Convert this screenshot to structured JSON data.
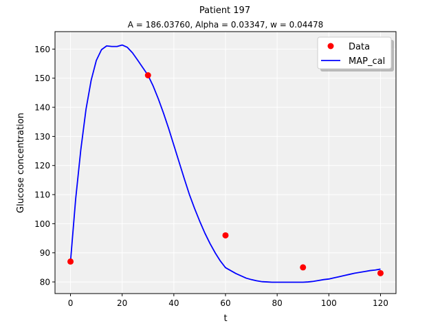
{
  "chart_data": {
    "type": "line",
    "suptitle": "Patient 197",
    "title": "A = 186.03760, Alpha = 0.03347, w = 0.04478",
    "xlabel": "t",
    "ylabel": "Glucose concentration",
    "xlim": [
      -6,
      126
    ],
    "ylim": [
      76,
      166
    ],
    "xticks": [
      0,
      20,
      40,
      60,
      80,
      100,
      120
    ],
    "yticks": [
      80,
      90,
      100,
      110,
      120,
      130,
      140,
      150,
      160
    ],
    "grid": true,
    "legend": "top-right",
    "series": [
      {
        "name": "Data",
        "kind": "scatter",
        "color": "#ff0000",
        "x": [
          0,
          30,
          60,
          90,
          120
        ],
        "y": [
          87,
          151,
          96,
          85,
          83
        ]
      },
      {
        "name": "MAP_cal",
        "kind": "line",
        "color": "#0000ff",
        "x": [
          0,
          2,
          4,
          6,
          8,
          10,
          12,
          14,
          16,
          18,
          20,
          22,
          24,
          26,
          28,
          30,
          32,
          34,
          36,
          38,
          40,
          42,
          44,
          46,
          48,
          50,
          52,
          54,
          56,
          58,
          60,
          62,
          64,
          66,
          68,
          70,
          72,
          74,
          76,
          78,
          80,
          82,
          84,
          86,
          88,
          90,
          92,
          94,
          96,
          98,
          100,
          102,
          104,
          106,
          108,
          110,
          112,
          114,
          116,
          118,
          120
        ],
        "y": [
          87.0,
          108.5,
          125.5,
          139.3,
          149.3,
          156.1,
          159.8,
          161.1,
          160.9,
          160.9,
          161.4,
          160.6,
          158.7,
          156.2,
          153.6,
          151.0,
          147.3,
          142.9,
          138.0,
          132.7,
          127.0,
          121.3,
          115.6,
          110.1,
          105.3,
          100.9,
          96.8,
          93.2,
          90.0,
          87.2,
          84.9,
          83.9,
          82.9,
          82.1,
          81.3,
          80.8,
          80.4,
          80.1,
          80.0,
          79.9,
          79.9,
          79.9,
          79.9,
          79.9,
          79.9,
          79.9,
          80.0,
          80.2,
          80.5,
          80.8,
          81.0,
          81.4,
          81.8,
          82.2,
          82.6,
          83.0,
          83.3,
          83.6,
          83.9,
          84.1,
          84.4
        ]
      }
    ]
  }
}
